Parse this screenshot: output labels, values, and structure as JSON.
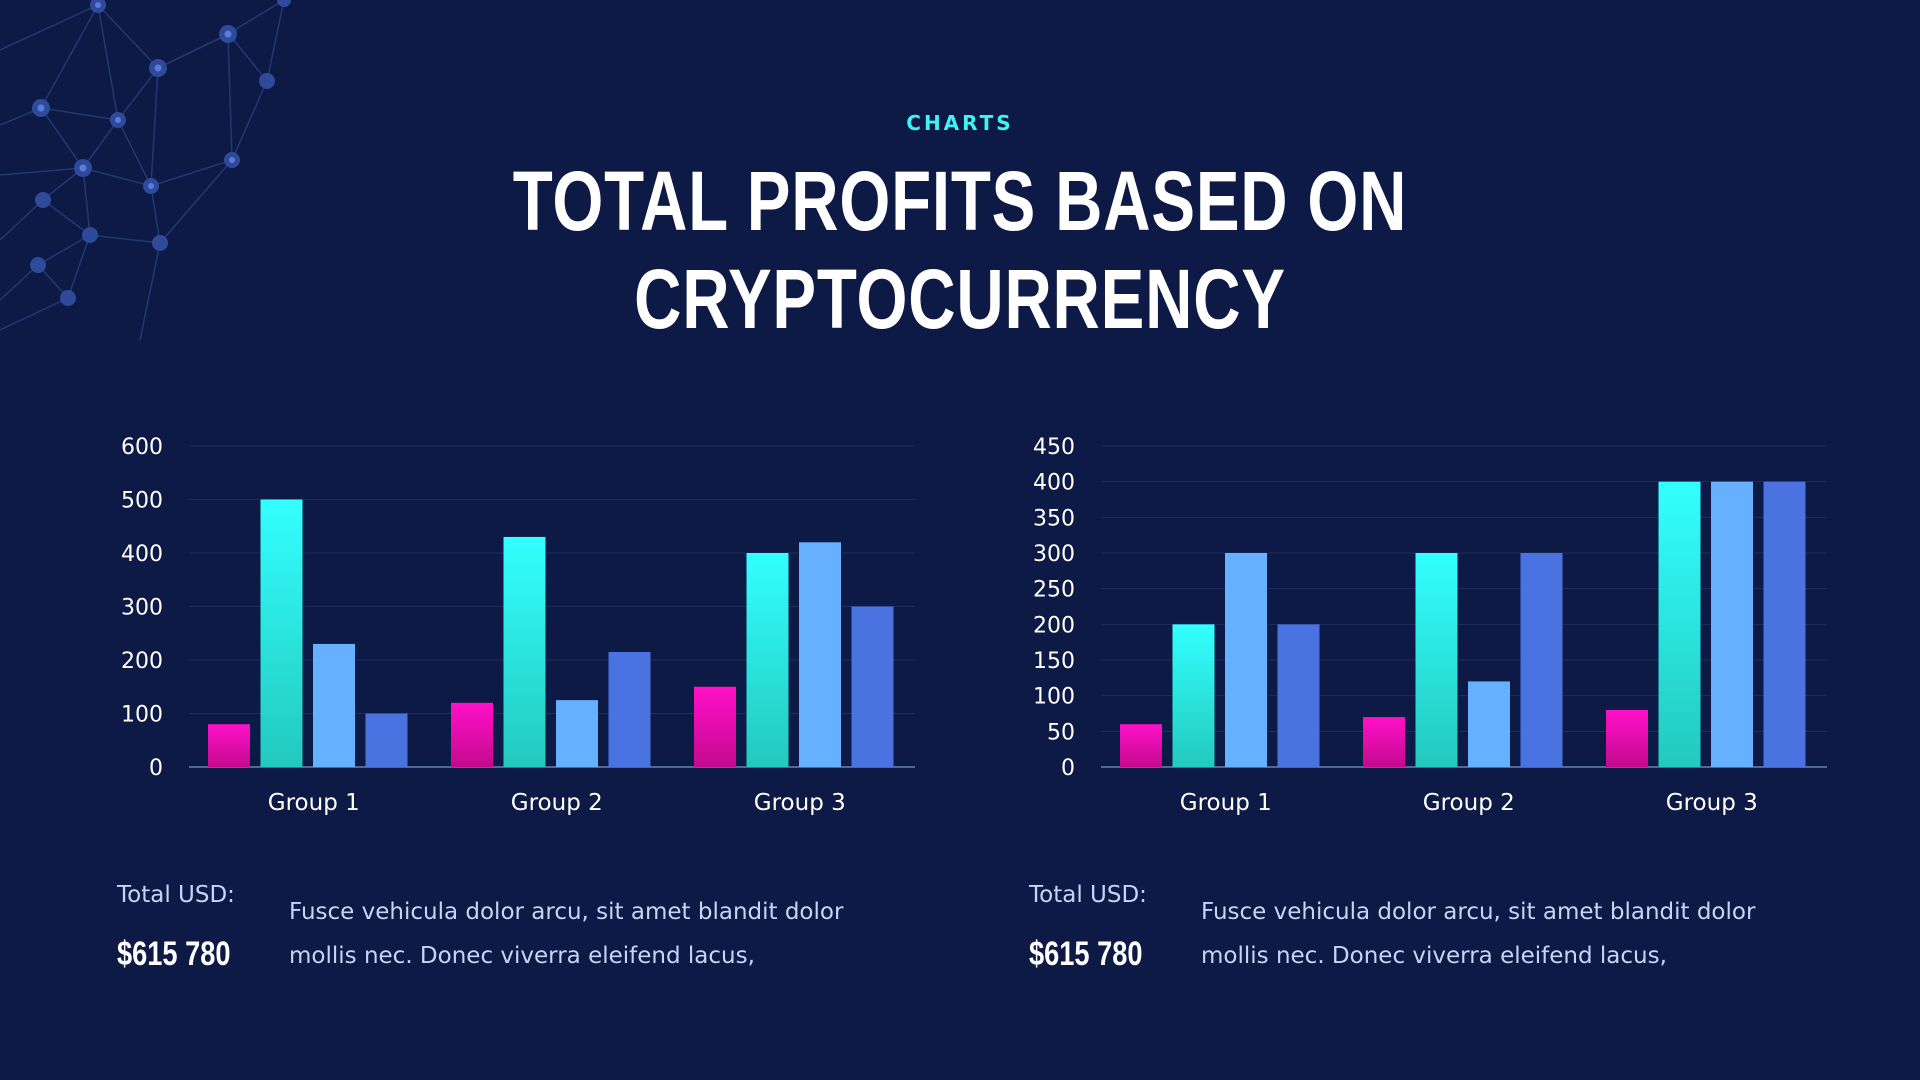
{
  "header": {
    "eyebrow": "CHARTS",
    "title": "TOTAL PROFITS BASED ON CRYPTOCURRENCY"
  },
  "colors": {
    "background": "#0c1a45",
    "pink": "#ff10c8",
    "cyan": "#33ffff",
    "light_blue": "#66b0ff",
    "blue": "#4a72e0",
    "gridline": "#1e2c5c"
  },
  "chart_data": [
    {
      "type": "bar",
      "categories": [
        "Group 1",
        "Group 2",
        "Group 3"
      ],
      "series": [
        {
          "values": [
            80,
            120,
            150
          ]
        },
        {
          "values": [
            500,
            430,
            400
          ]
        },
        {
          "values": [
            230,
            125,
            420
          ]
        },
        {
          "values": [
            100,
            215,
            300
          ]
        }
      ],
      "yticks": [
        0,
        100,
        200,
        300,
        400,
        500,
        600
      ],
      "ylim": [
        0,
        600
      ],
      "grid": true,
      "legend": "none"
    },
    {
      "type": "bar",
      "categories": [
        "Group 1",
        "Group 2",
        "Group 3"
      ],
      "series": [
        {
          "values": [
            60,
            70,
            80
          ]
        },
        {
          "values": [
            200,
            300,
            400
          ]
        },
        {
          "values": [
            300,
            120,
            400
          ]
        },
        {
          "values": [
            200,
            300,
            400
          ]
        }
      ],
      "yticks": [
        0,
        50,
        100,
        150,
        200,
        250,
        300,
        350,
        400,
        450
      ],
      "ylim": [
        0,
        450
      ],
      "grid": true,
      "legend": "none"
    }
  ],
  "summaries": [
    {
      "total_label": "Total USD:",
      "total_value": "$615 780",
      "description": "Fusce vehicula dolor arcu, sit amet blandit dolor mollis nec. Donec viverra eleifend lacus,"
    },
    {
      "total_label": "Total USD:",
      "total_value": "$615 780",
      "description": "Fusce vehicula dolor arcu, sit amet blandit dolor mollis nec. Donec viverra eleifend lacus,"
    }
  ]
}
